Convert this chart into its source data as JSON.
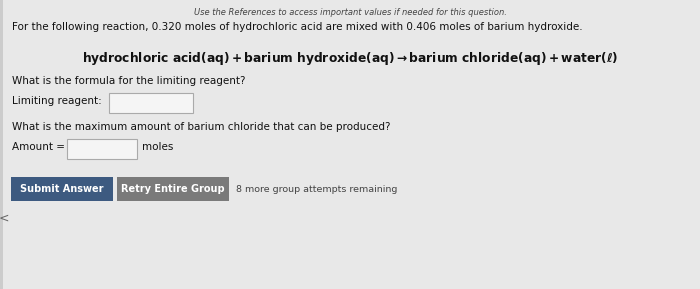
{
  "bg_color": "#e8e8e8",
  "header_text": "Use the References to access important values if needed for this question.",
  "line1": "For the following reaction, 0.320 moles of hydrochloric acid are mixed with 0.406 moles of barium hydroxide.",
  "eq_part1": "hydrochloric acid",
  "eq_part2": "(aq)",
  "eq_part3": " + barium hydroxide",
  "eq_part4": "(aq)",
  "eq_part5": " → barium chloride",
  "eq_part6": "(aq)",
  "eq_part7": " + water",
  "eq_part8": "(ℓ)",
  "q1": "What is the formula for the limiting reagent?",
  "label1": "Limiting reagent:",
  "q2": "What is the maximum amount of barium chloride that can be produced?",
  "label2": "Amount =",
  "label2b": "moles",
  "btn1_text": "Submit Answer",
  "btn2_text": "Retry Entire Group",
  "btn3_text": "8 more group attempts remaining",
  "btn1_color": "#3d5a80",
  "btn2_color": "#7a7a7a",
  "box_edge_color": "#aaaaaa",
  "box_face_color": "#f5f5f5",
  "text_color": "#111111",
  "header_color": "#444444"
}
